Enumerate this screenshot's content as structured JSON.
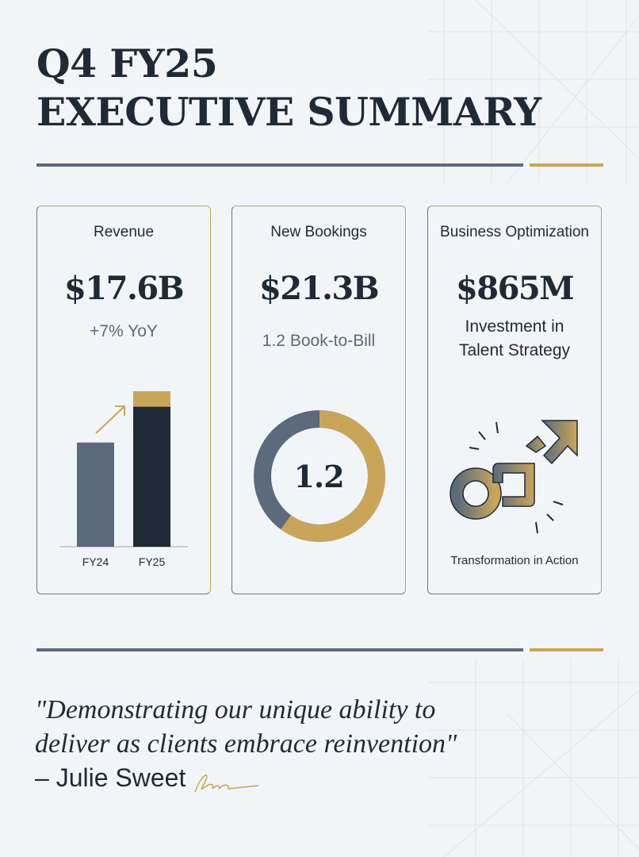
{
  "title": {
    "line1": "Q4 FY25",
    "line2": "EXECUTIVE SUMMARY"
  },
  "colors": {
    "navy": "#1f2a36",
    "slate": "#5b6a7d",
    "gold": "#c9a55a",
    "background": "#f2f5f7"
  },
  "cards": [
    {
      "label": "Revenue",
      "value": "$17.6B",
      "sub": "+7% YoY"
    },
    {
      "label": "New Bookings",
      "value": "$21.3B",
      "sub": "1.2 Book-to-Bill",
      "ring_value": "1.2",
      "ring_gold_fraction": 0.6
    },
    {
      "label": "Business Optimization",
      "value": "$865M",
      "sub_line1": "Investment in",
      "sub_line2": "Talent Strategy",
      "icon": "transformation-arrow-icon",
      "caption": "Transformation in Action"
    }
  ],
  "chart_data": {
    "type": "bar",
    "categories": [
      "FY24",
      "FY25"
    ],
    "values": [
      0.67,
      1.0
    ],
    "highlight_top_fraction": 0.1,
    "title": "",
    "xlabel": "",
    "ylabel": ""
  },
  "quote": {
    "line1": "\"Demonstrating our unique ability to",
    "line2": "deliver as clients embrace reinvention\"",
    "author": "– Julie Sweet",
    "signature": "signature-scribble"
  }
}
